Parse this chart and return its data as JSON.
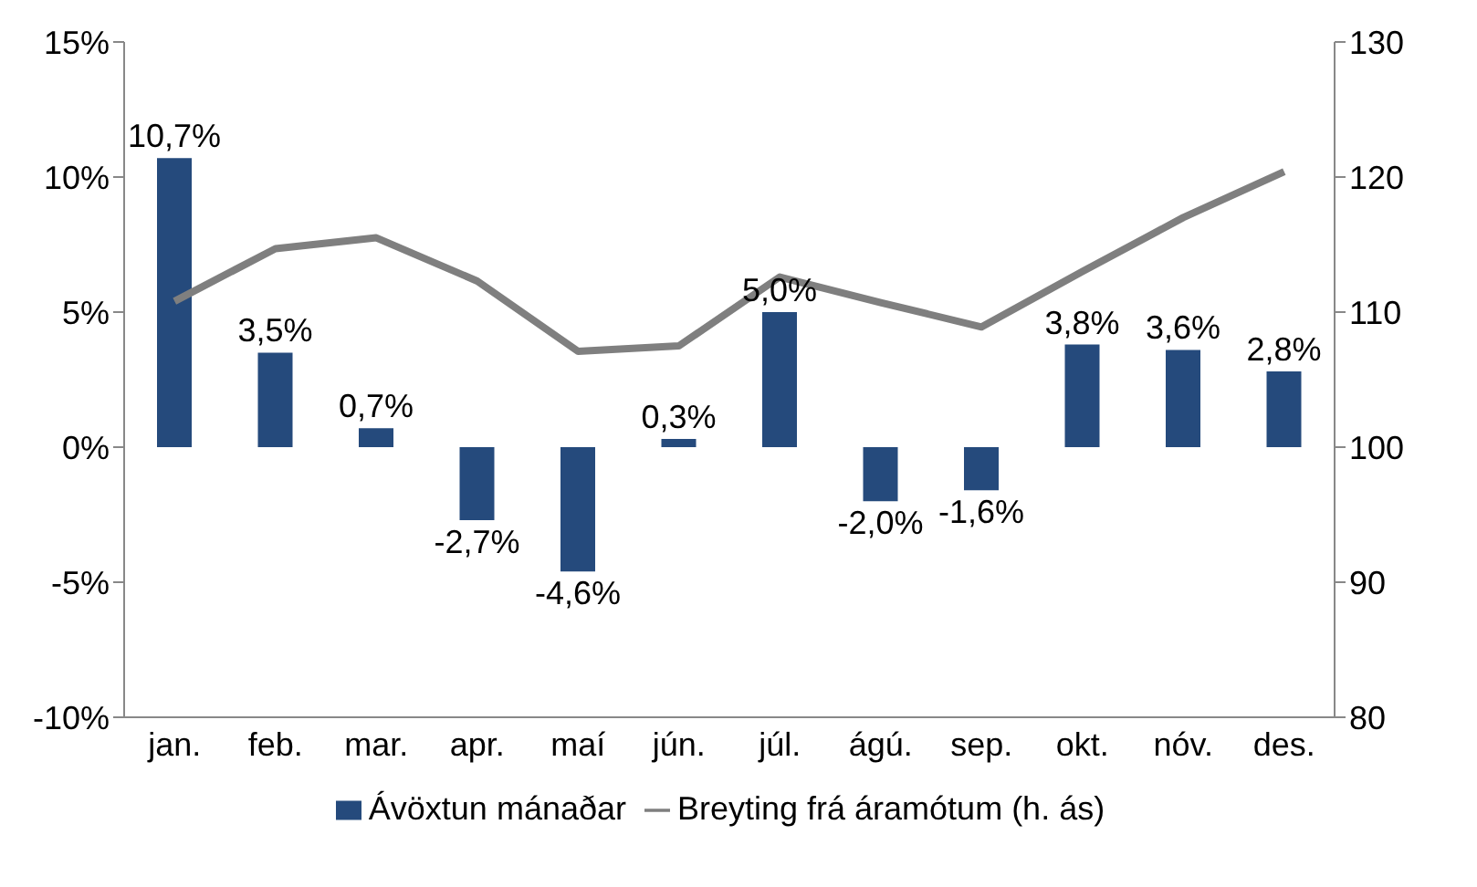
{
  "chart_data": {
    "type": "bar",
    "categories": [
      "jan.",
      "feb.",
      "mar.",
      "apr.",
      "maí",
      "jún.",
      "júl.",
      "ágú.",
      "sep.",
      "okt.",
      "nóv.",
      "des."
    ],
    "series": [
      {
        "name": "Ávöxtun mánaðar",
        "color": "#254a7c",
        "values": [
          10.7,
          3.5,
          0.7,
          -2.7,
          -4.6,
          0.3,
          5.0,
          -2.0,
          -1.6,
          3.8,
          3.6,
          2.8
        ],
        "value_labels": [
          "10,7%",
          "3,5%",
          "0,7%",
          "-2,7%",
          "-4,6%",
          "0,3%",
          "5,0%",
          "-2,0%",
          "-1,6%",
          "3,8%",
          "3,6%",
          "2,8%"
        ]
      },
      {
        "name": "Breyting frá áramótum (h. ás)",
        "type": "line",
        "axis": "y2",
        "color": "#7f7f7f",
        "values": [
          110.8,
          114.7,
          115.5,
          112.3,
          107.1,
          107.5,
          112.6,
          110.7,
          108.9,
          113.0,
          117.0,
          120.4
        ]
      }
    ],
    "ylim": [
      -10,
      15
    ],
    "yticks": [
      {
        "value": -10,
        "label": "-10%"
      },
      {
        "value": -5,
        "label": "-5%"
      },
      {
        "value": 0,
        "label": "0%"
      },
      {
        "value": 5,
        "label": "5%"
      },
      {
        "value": 10,
        "label": "10%"
      },
      {
        "value": 15,
        "label": "15%"
      }
    ],
    "y2lim": [
      80,
      130
    ],
    "y2ticks": [
      80,
      90,
      100,
      110,
      120,
      130
    ],
    "grid": false,
    "legend": "bottom",
    "marker": "none",
    "line_style": "solid"
  }
}
